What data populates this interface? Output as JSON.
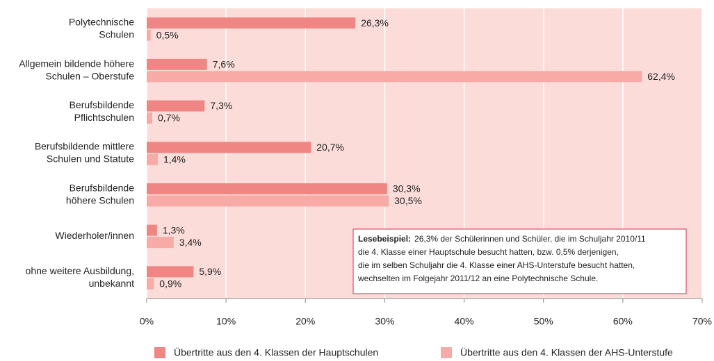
{
  "chart_data": {
    "type": "bar",
    "orientation": "horizontal",
    "categories": [
      [
        "Polytechnische",
        "Schulen"
      ],
      [
        "Allgemein bildende höhere",
        "Schulen – Oberstufe"
      ],
      [
        "Berufsbildende",
        "Pflichtschulen"
      ],
      [
        "Berufsbildende mittlere",
        "Schulen und Statute"
      ],
      [
        "Berufsbildende",
        "höhere Schulen"
      ],
      [
        "Wiederholer/innen"
      ],
      [
        "ohne weitere  Ausbildung,",
        "unbekannt"
      ]
    ],
    "series": [
      {
        "name": "Übertritte aus den 4. Klassen der Hauptschulen",
        "color": "#f08683",
        "values": [
          26.3,
          7.6,
          7.3,
          20.7,
          30.3,
          1.3,
          5.9
        ],
        "value_labels": [
          "26,3%",
          "7,6%",
          "7,3%",
          "20,7%",
          "30,3%",
          "1,3%",
          "5,9%"
        ]
      },
      {
        "name": "Übertritte aus den 4. Klassen der AHS-Unterstufe",
        "color": "#f7aaa6",
        "values": [
          0.5,
          62.4,
          0.7,
          1.4,
          30.5,
          3.4,
          0.9
        ],
        "value_labels": [
          "0,5%",
          "62,4%",
          "0,7%",
          "1,4%",
          "30,5%",
          "3,4%",
          "0,9%"
        ]
      }
    ],
    "xlim": [
      0,
      70
    ],
    "xticks": [
      {
        "value": 0,
        "label": "0%"
      },
      {
        "value": 10,
        "label": "10%"
      },
      {
        "value": 20,
        "label": "20%"
      },
      {
        "value": 30,
        "label": "30%"
      },
      {
        "value": 40,
        "label": "40%"
      },
      {
        "value": 50,
        "label": "50%"
      },
      {
        "value": 60,
        "label": "60%"
      },
      {
        "value": 70,
        "label": "70%"
      }
    ],
    "grid": true,
    "annotation": {
      "label": "Lesebeispiel:",
      "lines": [
        "26,3% der Schülerinnen und Schüler, die im Schuljahr 2010/11",
        "die 4. Klasse einer Hauptschule besucht hatten, bzw. 0,5% derjenigen,",
        "die im selben Schuljahr die 4. Klasse einer AHS-Unterstufe besucht hatten,",
        "wechselten im Folgejahr 2011/12 an eine  Polytechnische Schule."
      ]
    }
  }
}
